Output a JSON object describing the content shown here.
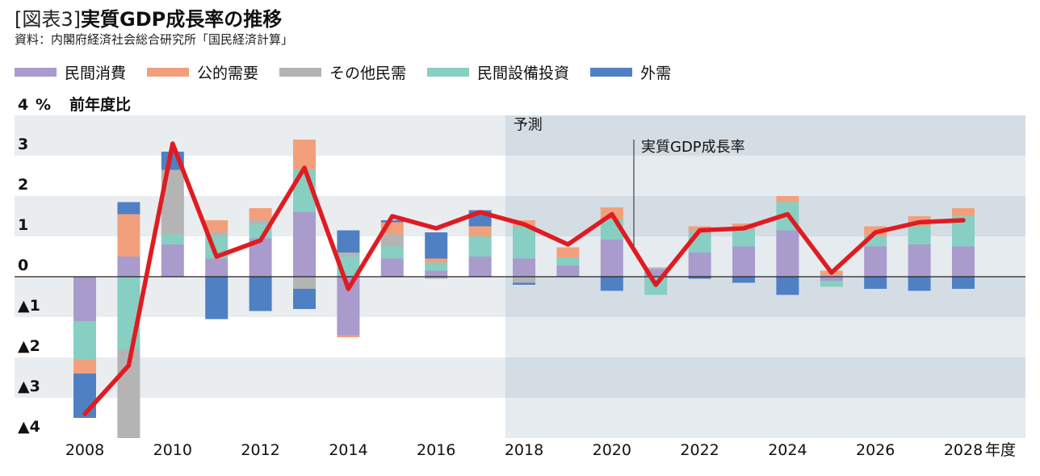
{
  "header": {
    "tag": "[図表3]",
    "title": "実質GDP成長率の推移",
    "source": "資料：内閣府経済社会総合研究所「国民経済計算」"
  },
  "legend": [
    {
      "name": "外需",
      "color": "#4f80c4"
    },
    {
      "name": "公的需要",
      "color": "#f2a07c"
    },
    {
      "name": "その他民需",
      "color": "#b4b4b4"
    },
    {
      "name": "民間設備投資",
      "color": "#86cfc2"
    },
    {
      "name": "民間消費",
      "color": "#a99bcc"
    }
  ],
  "chart_data": {
    "type": "bar",
    "stacked": true,
    "y_unit_label": "%",
    "y_caption": "前年度比",
    "x_unit_label": "年度",
    "forecast_label": "予測",
    "forecast_start_year": 2018,
    "line_annotation": "実質GDP成長率",
    "ylim": [
      -4,
      4
    ],
    "y_ticks": [
      "4",
      "3",
      "2",
      "1",
      "0",
      "▲1",
      "▲2",
      "▲3",
      "▲4"
    ],
    "x_ticks": [
      "2008",
      "2010",
      "2012",
      "2014",
      "2016",
      "2018",
      "2020",
      "2022",
      "2024",
      "2026",
      "2028"
    ],
    "years": [
      2008,
      2009,
      2010,
      2011,
      2012,
      2013,
      2014,
      2015,
      2016,
      2017,
      2018,
      2019,
      2020,
      2021,
      2022,
      2023,
      2024,
      2025,
      2026,
      2027,
      2028
    ],
    "series": [
      {
        "name": "民間消費",
        "color": "#a99bcc",
        "values": [
          -1.1,
          0.5,
          0.8,
          0.45,
          0.95,
          1.6,
          -1.45,
          0.45,
          0.15,
          0.5,
          0.45,
          0.28,
          0.92,
          0.18,
          0.6,
          0.75,
          1.15,
          -0.1,
          0.75,
          0.8,
          0.75
        ]
      },
      {
        "name": "民間設備投資",
        "color": "#86cfc2",
        "values": [
          -0.95,
          -1.8,
          0.25,
          0.55,
          0.35,
          1.05,
          0.5,
          0.3,
          0.2,
          0.5,
          0.8,
          0.2,
          0.5,
          -0.45,
          0.45,
          0.4,
          0.7,
          -0.15,
          0.25,
          0.45,
          0.75
        ]
      },
      {
        "name": "その他民需",
        "color": "#b4b4b4",
        "values": [
          0,
          -2.2,
          1.6,
          0.1,
          0.1,
          -0.3,
          0.1,
          0.3,
          -0.05,
          0,
          -0.15,
          0,
          0,
          0.05,
          0.1,
          0.05,
          0,
          0.05,
          0,
          0,
          0
        ]
      },
      {
        "name": "公的需要",
        "color": "#f2a07c",
        "values": [
          -0.35,
          1.05,
          0,
          0.3,
          0.3,
          0.75,
          -0.05,
          0.3,
          0.1,
          0.25,
          0.15,
          0.25,
          0.3,
          0,
          0.1,
          0.12,
          0.15,
          0.1,
          0.25,
          0.25,
          0.2
        ]
      },
      {
        "name": "外需",
        "color": "#4f80c4",
        "values": [
          -1.1,
          0.3,
          0.45,
          -1.05,
          -0.85,
          -0.5,
          0.55,
          0.05,
          0.65,
          0.4,
          -0.05,
          0,
          -0.35,
          0,
          -0.05,
          -0.15,
          -0.45,
          0,
          -0.3,
          -0.35,
          -0.3
        ]
      }
    ],
    "line": {
      "name": "実質GDP成長率",
      "values": [
        -3.4,
        -2.2,
        3.3,
        0.5,
        0.9,
        2.7,
        -0.3,
        1.5,
        1.2,
        1.6,
        1.3,
        0.8,
        1.55,
        -0.2,
        1.15,
        1.2,
        1.55,
        0.1,
        1.1,
        1.35,
        1.4
      ]
    }
  }
}
